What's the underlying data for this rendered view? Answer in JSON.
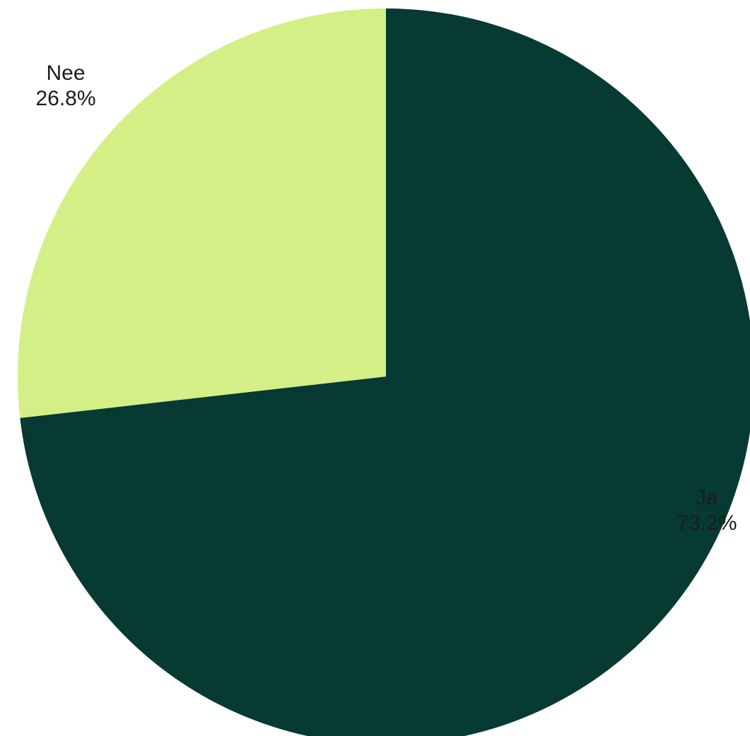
{
  "chart_data": {
    "type": "pie",
    "title": "",
    "start_angle_deg": 0,
    "direction": "clockwise",
    "slices": [
      {
        "label": "Ja",
        "value": 73.2,
        "value_label": "73.2%",
        "color": "#063a32"
      },
      {
        "label": "Nee",
        "value": 26.8,
        "value_label": "26.8%",
        "color": "#d4ef86"
      }
    ]
  }
}
